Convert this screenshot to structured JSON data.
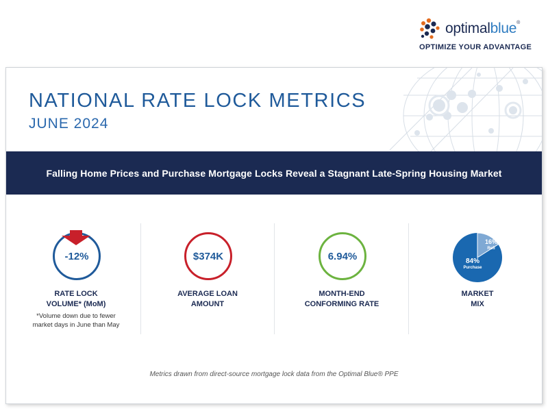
{
  "brand": {
    "wordmark_part1": "optimal",
    "wordmark_part2": "blue",
    "trademark": "®",
    "tagline": "OPTIMIZE YOUR ADVANTAGE",
    "colors": {
      "navy": "#1b2a52",
      "blue": "#2f7cc1",
      "orange": "#e36b1e"
    }
  },
  "header": {
    "title": "NATIONAL RATE LOCK METRICS",
    "subtitle": "JUNE 2024"
  },
  "banner": {
    "headline": "Falling Home Prices and Purchase Mortgage Locks Reveal a Stagnant Late-Spring Housing Market"
  },
  "metrics": [
    {
      "value": "-12%",
      "label_line1": "RATE LOCK",
      "label_line2": "VOLUME* (MoM)",
      "note_line1": "*Volume down due to fewer",
      "note_line2": "market days in June than May",
      "ring_color": "#1f5a9a",
      "indicator": "down-arrow",
      "indicator_color": "#c8202a"
    },
    {
      "value": "$374K",
      "label_line1": "AVERAGE LOAN",
      "label_line2": "AMOUNT",
      "ring_color": "#c8202a"
    },
    {
      "value": "6.94%",
      "label_line1": "MONTH-END",
      "label_line2": "CONFORMING RATE",
      "ring_color": "#6cb33f"
    },
    {
      "label_line1": "MARKET",
      "label_line2": "MIX"
    }
  ],
  "chart_data": {
    "type": "pie",
    "title": "MARKET MIX",
    "categories": [
      "Purchase",
      "Refi"
    ],
    "values": [
      84,
      16
    ],
    "value_labels": [
      "84%",
      "16%"
    ],
    "colors": [
      "#1a68b0",
      "#7fa9d4"
    ]
  },
  "footer": {
    "note": "Metrics drawn from direct-source mortgage lock data from the Optimal Blue® PPE"
  }
}
